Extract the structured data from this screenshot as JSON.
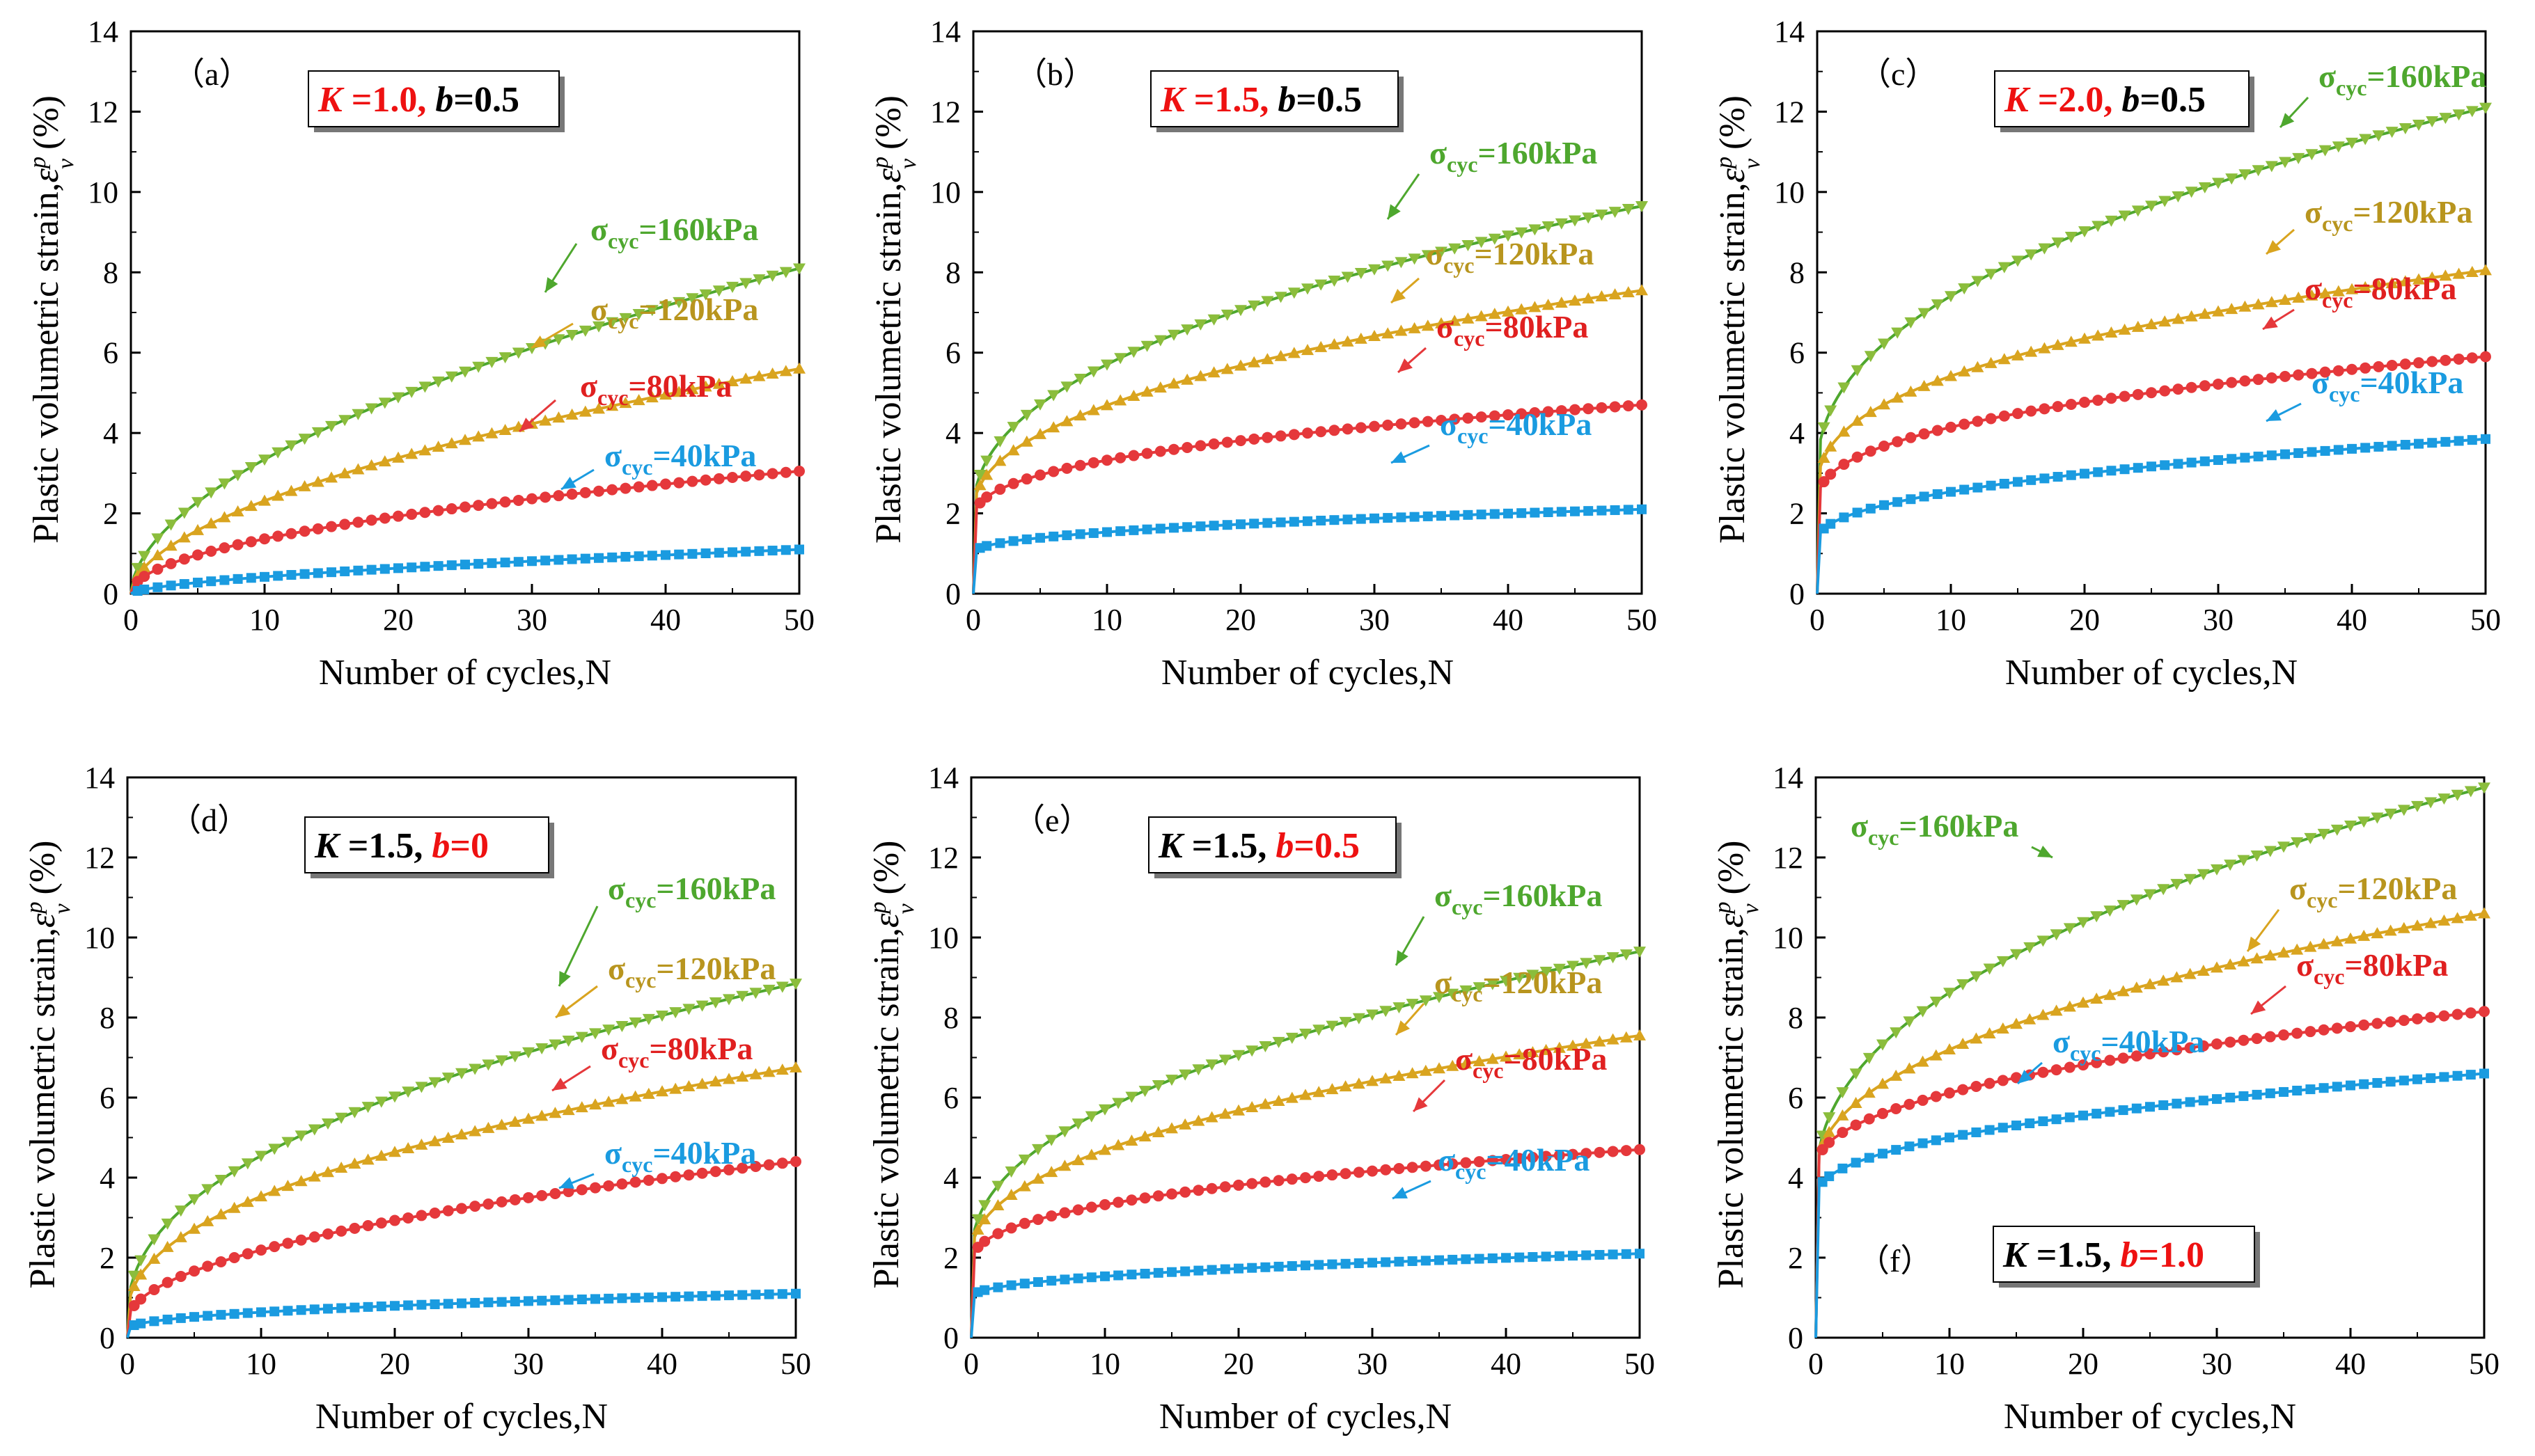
{
  "colors": {
    "s160": "#4ea72e",
    "s160_marker": "#8bbd3c",
    "s120": "#d9a41f",
    "s120_text": "#b8951e",
    "s80": "#e5383b",
    "s80_text": "#e02020",
    "s40": "#1a9be0",
    "red": "#ee1111"
  },
  "x_ticks": [
    "0",
    "10",
    "20",
    "30",
    "40",
    "50"
  ],
  "y_ticks": [
    "0",
    "2",
    "4",
    "6",
    "8",
    "10",
    "12",
    "14"
  ],
  "chart_data": [
    {
      "type": "line",
      "tag": "（a）",
      "key": {
        "kpre": "K",
        "kval": " =1.0,",
        "bpre": " b",
        "bval": "=0.5",
        "red_part": "K"
      },
      "xlabel": "Number of cycles,N",
      "ylabel": "Plastic volumetric strain,",
      "ylabel_symbol": "ε",
      "ylabel_sup": "p",
      "ylabel_sub": "v",
      "ylabel_unit": " (%)",
      "xlim": [
        0,
        50
      ],
      "ylim": [
        0,
        14
      ],
      "series": [
        {
          "name": "σcyc=160kPa",
          "sigma": "σ",
          "sub": "cyc",
          "tail": "=160kPa",
          "marker": "tri-down",
          "final": 8.1,
          "initial": 0.0,
          "shape": 0.55
        },
        {
          "name": "σcyc=120kPa",
          "sigma": "σ",
          "sub": "cyc",
          "tail": "=120kPa",
          "marker": "tri-up",
          "final": 5.6,
          "initial": 0.0,
          "shape": 0.55
        },
        {
          "name": "σcyc=80kPa",
          "sigma": "σ",
          "sub": "cyc",
          "tail": "=80kPa",
          "marker": "circle",
          "final": 3.05,
          "initial": 0.0,
          "shape": 0.5
        },
        {
          "name": "σcyc=40kPa",
          "sigma": "σ",
          "sub": "cyc",
          "tail": "=40kPa",
          "marker": "square",
          "final": 1.1,
          "initial": 0.0,
          "shape": 0.6
        }
      ]
    },
    {
      "type": "line",
      "tag": "（b）",
      "key": {
        "kpre": "K",
        "kval": " =1.5,",
        "bpre": " b",
        "bval": "=0.5",
        "red_part": "K"
      },
      "xlabel": "Number of cycles,N",
      "ylabel": "Plastic volumetric strain,",
      "ylabel_symbol": "ε",
      "ylabel_sup": "p",
      "ylabel_sub": "v",
      "ylabel_unit": " (%)",
      "xlim": [
        0,
        50
      ],
      "ylim": [
        0,
        14
      ],
      "series": [
        {
          "name": "σcyc=160kPa",
          "sigma": "σ",
          "sub": "cyc",
          "tail": "=160kPa",
          "marker": "tri-down",
          "final": 9.65,
          "initial": 2.0,
          "shape": 0.45
        },
        {
          "name": "σcyc=120kPa",
          "sigma": "σ",
          "sub": "cyc",
          "tail": "=120kPa",
          "marker": "tri-up",
          "final": 7.55,
          "initial": 2.0,
          "shape": 0.45
        },
        {
          "name": "σcyc=80kPa",
          "sigma": "σ",
          "sub": "cyc",
          "tail": "=80kPa",
          "marker": "circle",
          "final": 4.7,
          "initial": 1.8,
          "shape": 0.4
        },
        {
          "name": "σcyc=40kPa",
          "sigma": "σ",
          "sub": "cyc",
          "tail": "=40kPa",
          "marker": "square",
          "final": 2.1,
          "initial": 1.0,
          "shape": 0.45
        }
      ]
    },
    {
      "type": "line",
      "tag": "（c）",
      "key": {
        "kpre": "K",
        "kval": " =2.0,",
        "bpre": " b",
        "bval": "=0.5",
        "red_part": "K"
      },
      "xlabel": "Number of cycles,N",
      "ylabel": "Plastic volumetric strain,",
      "ylabel_symbol": "ε",
      "ylabel_sup": "p",
      "ylabel_sub": "v",
      "ylabel_unit": " (%)",
      "xlim": [
        0,
        50
      ],
      "ylim": [
        0,
        14
      ],
      "series": [
        {
          "name": "σcyc=160kPa",
          "sigma": "σ",
          "sub": "cyc",
          "tail": "=160kPa",
          "marker": "tri-down",
          "final": 12.1,
          "initial": 3.0,
          "shape": 0.45
        },
        {
          "name": "σcyc=120kPa",
          "sigma": "σ",
          "sub": "cyc",
          "tail": "=120kPa",
          "marker": "tri-up",
          "final": 8.05,
          "initial": 2.5,
          "shape": 0.4
        },
        {
          "name": "σcyc=80kPa",
          "sigma": "σ",
          "sub": "cyc",
          "tail": "=80kPa",
          "marker": "circle",
          "final": 5.9,
          "initial": 2.2,
          "shape": 0.4
        },
        {
          "name": "σcyc=40kPa",
          "sigma": "σ",
          "sub": "cyc",
          "tail": "=40kPa",
          "marker": "square",
          "final": 3.85,
          "initial": 1.3,
          "shape": 0.45
        }
      ]
    },
    {
      "type": "line",
      "tag": "（d）",
      "key": {
        "kpre": "K",
        "kval": " =1.5,",
        "bpre": " b",
        "bval": "=0",
        "red_part": "b"
      },
      "xlabel": "Number of cycles,N",
      "ylabel": "Plastic volumetric strain,",
      "ylabel_symbol": "ε",
      "ylabel_sup": "p",
      "ylabel_sub": "v",
      "ylabel_unit": " (%)",
      "xlim": [
        0,
        50
      ],
      "ylim": [
        0,
        14
      ],
      "series": [
        {
          "name": "σcyc=160kPa",
          "sigma": "σ",
          "sub": "cyc",
          "tail": "=160kPa",
          "marker": "tri-down",
          "final": 8.85,
          "initial": 0.5,
          "shape": 0.45
        },
        {
          "name": "σcyc=120kPa",
          "sigma": "σ",
          "sub": "cyc",
          "tail": "=120kPa",
          "marker": "tri-up",
          "final": 6.75,
          "initial": 0.5,
          "shape": 0.45
        },
        {
          "name": "σcyc=80kPa",
          "sigma": "σ",
          "sub": "cyc",
          "tail": "=80kPa",
          "marker": "circle",
          "final": 4.4,
          "initial": 0.4,
          "shape": 0.5
        },
        {
          "name": "σcyc=40kPa",
          "sigma": "σ",
          "sub": "cyc",
          "tail": "=40kPa",
          "marker": "square",
          "final": 1.1,
          "initial": 0.2,
          "shape": 0.45
        }
      ]
    },
    {
      "type": "line",
      "tag": "（e）",
      "key": {
        "kpre": "K",
        "kval": " =1.5,",
        "bpre": " b",
        "bval": "=0.5",
        "red_part": "b"
      },
      "xlabel": "Number of cycles,N",
      "ylabel": "Plastic volumetric strain,",
      "ylabel_symbol": "ε",
      "ylabel_sup": "p",
      "ylabel_sub": "v",
      "ylabel_unit": " (%)",
      "xlim": [
        0,
        50
      ],
      "ylim": [
        0,
        14
      ],
      "series": [
        {
          "name": "σcyc=160kPa",
          "sigma": "σ",
          "sub": "cyc",
          "tail": "=160kPa",
          "marker": "tri-down",
          "final": 9.65,
          "initial": 2.0,
          "shape": 0.45
        },
        {
          "name": "σcyc=120kPa",
          "sigma": "σ",
          "sub": "cyc",
          "tail": "=120kPa",
          "marker": "tri-up",
          "final": 7.55,
          "initial": 2.0,
          "shape": 0.45
        },
        {
          "name": "σcyc=80kPa",
          "sigma": "σ",
          "sub": "cyc",
          "tail": "=80kPa",
          "marker": "circle",
          "final": 4.7,
          "initial": 1.8,
          "shape": 0.4
        },
        {
          "name": "σcyc=40kPa",
          "sigma": "σ",
          "sub": "cyc",
          "tail": "=40kPa",
          "marker": "square",
          "final": 2.1,
          "initial": 1.0,
          "shape": 0.45
        }
      ]
    },
    {
      "type": "line",
      "tag": "（f）",
      "key": {
        "kpre": "K",
        "kval": " =1.5,",
        "bpre": " b",
        "bval": "=1.0",
        "red_part": "b"
      },
      "xlabel": "Number of cycles,N",
      "ylabel": "Plastic volumetric strain,",
      "ylabel_symbol": "ε",
      "ylabel_sup": "p",
      "ylabel_sub": "v",
      "ylabel_unit": " (%)",
      "xlim": [
        0,
        50
      ],
      "ylim": [
        0,
        14
      ],
      "series": [
        {
          "name": "σcyc=160kPa",
          "sigma": "σ",
          "sub": "cyc",
          "tail": "=160kPa",
          "marker": "tri-down",
          "final": 13.75,
          "initial": 3.8,
          "shape": 0.45
        },
        {
          "name": "σcyc=120kPa",
          "sigma": "σ",
          "sub": "cyc",
          "tail": "=120kPa",
          "marker": "tri-up",
          "final": 10.6,
          "initial": 4.0,
          "shape": 0.45
        },
        {
          "name": "σcyc=80kPa",
          "sigma": "σ",
          "sub": "cyc",
          "tail": "=80kPa",
          "marker": "circle",
          "final": 8.15,
          "initial": 4.2,
          "shape": 0.45
        },
        {
          "name": "σcyc=40kPa",
          "sigma": "σ",
          "sub": "cyc",
          "tail": "=40kPa",
          "marker": "square",
          "final": 6.6,
          "initial": 3.5,
          "shape": 0.45
        }
      ]
    }
  ]
}
